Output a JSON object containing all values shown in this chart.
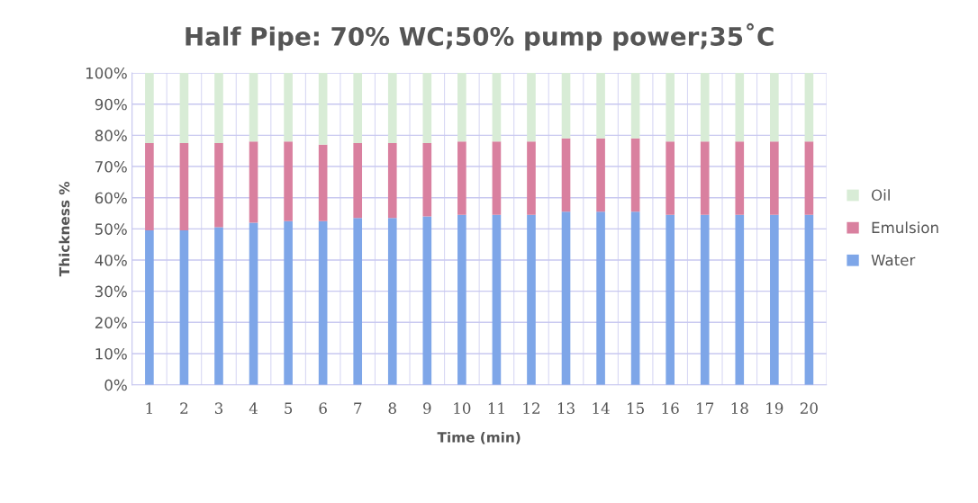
{
  "chart_data": {
    "type": "bar",
    "title": "Half Pipe: 70% WC;50% pump power;35˚C",
    "xlabel": "Time (min)",
    "ylabel": "Thickness %",
    "categories": [
      "1",
      "2",
      "3",
      "4",
      "5",
      "6",
      "7",
      "8",
      "9",
      "10",
      "11",
      "12",
      "13",
      "14",
      "15",
      "16",
      "17",
      "18",
      "19",
      "20"
    ],
    "stacked": true,
    "series": [
      {
        "name": "Water",
        "color": "#7ea6e8",
        "values": [
          49.5,
          49.5,
          50.5,
          52,
          52.5,
          52.5,
          53.5,
          53.5,
          54,
          54.5,
          54.5,
          54.5,
          55.5,
          55.5,
          55.5,
          54.5,
          54.5,
          54.5,
          54.5,
          54.5
        ]
      },
      {
        "name": "Emulsion",
        "color": "#d9809f",
        "values": [
          28,
          28,
          27,
          26,
          25.5,
          24.5,
          24,
          24,
          23.5,
          23.5,
          23.5,
          23.5,
          23.5,
          23.5,
          23.5,
          23.5,
          23.5,
          23.5,
          23.5,
          23.5
        ]
      },
      {
        "name": "Oil",
        "color": "#d8ecd6",
        "values": [
          22.5,
          22.5,
          22.5,
          22,
          22,
          23,
          22.5,
          22.5,
          22.5,
          22,
          22,
          22,
          21,
          21,
          21,
          22,
          22,
          22,
          22,
          22
        ]
      }
    ],
    "ylim": [
      0,
      100
    ],
    "yticks": [
      {
        "value": 0,
        "label": "0%"
      },
      {
        "value": 10,
        "label": "10%"
      },
      {
        "value": 20,
        "label": "20%"
      },
      {
        "value": 30,
        "label": "30%"
      },
      {
        "value": 40,
        "label": "40%"
      },
      {
        "value": 50,
        "label": "50%"
      },
      {
        "value": 60,
        "label": "60%"
      },
      {
        "value": 70,
        "label": "70%"
      },
      {
        "value": 80,
        "label": "80%"
      },
      {
        "value": 90,
        "label": "90%"
      },
      {
        "value": 100,
        "label": "100%"
      }
    ],
    "grid": true,
    "legend": "right"
  }
}
